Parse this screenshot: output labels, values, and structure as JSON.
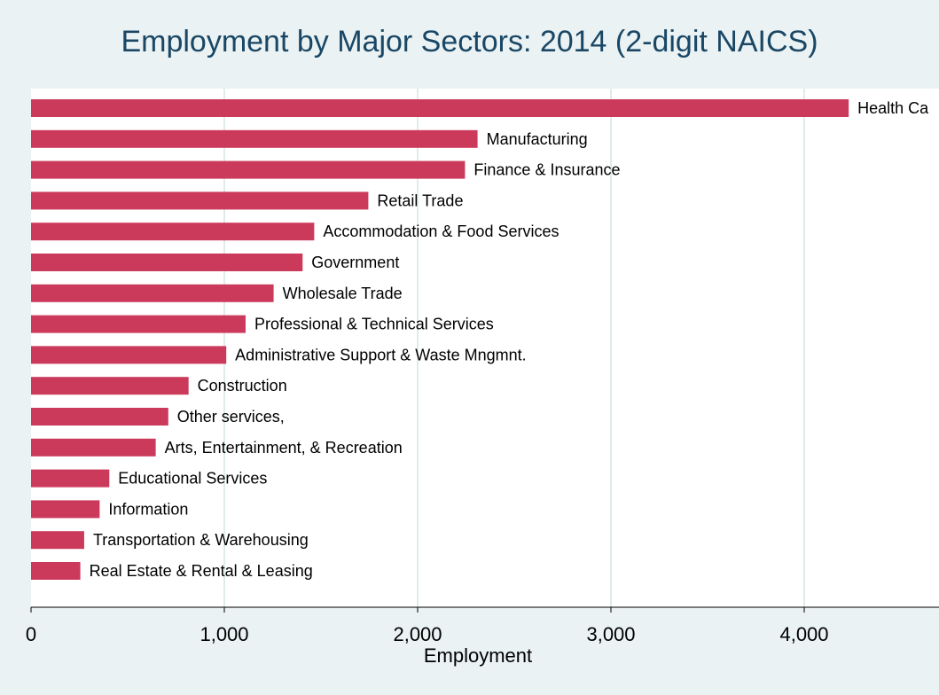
{
  "chart_data": {
    "type": "bar",
    "orientation": "horizontal",
    "title": "Employment by Major Sectors: 2014 (2-digit NAICS)",
    "xlabel": "Employment",
    "ylabel": "",
    "xlim": [
      0,
      4600
    ],
    "xticks": [
      {
        "value": 0,
        "label": "0"
      },
      {
        "value": 1000,
        "label": "1,000"
      },
      {
        "value": 2000,
        "label": "2,000"
      },
      {
        "value": 3000,
        "label": "3,000"
      },
      {
        "value": 4000,
        "label": "4,000"
      }
    ],
    "grid": true,
    "bar_color": "#cc3a5b",
    "categories": [
      "Health Ca",
      "Manufacturing",
      "Finance & Insurance",
      "Retail Trade",
      "Accommodation & Food Services",
      "Government",
      "Wholesale Trade",
      "Professional & Technical Services",
      "Administrative Support & Waste Mngmnt.",
      "Construction",
      "Other services,",
      "Arts, Entertainment, & Recreation",
      "Educational Services",
      "Information",
      "Transportation & Warehousing",
      "Real Estate & Rental & Leasing"
    ],
    "values": [
      4230,
      2310,
      2245,
      1745,
      1465,
      1405,
      1255,
      1110,
      1010,
      815,
      710,
      645,
      405,
      355,
      275,
      255
    ]
  }
}
